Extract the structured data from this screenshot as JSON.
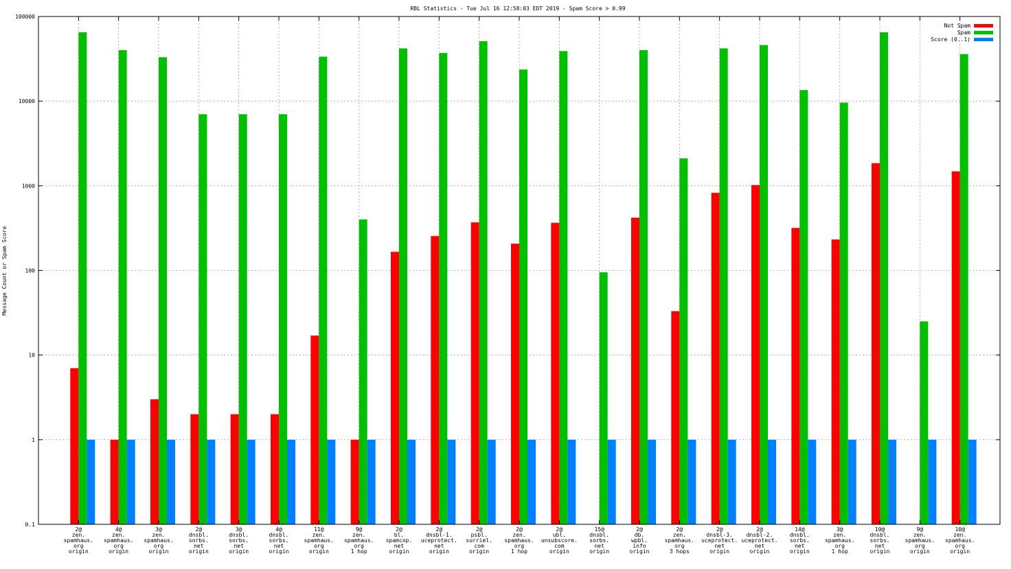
{
  "chart_data": {
    "type": "bar",
    "title": "RBL Statistics - Tue Jul 16 12:58:03 EDT 2019 - Spam Score > 0.99",
    "xlabel": "",
    "ylabel": "Message Count or Spam Score",
    "yscale": "log",
    "ylim": [
      0.1,
      100000
    ],
    "yticks": [
      "0.1",
      "1",
      "10",
      "100",
      "1000",
      "10000",
      "100000"
    ],
    "ytick_values": [
      0.1,
      1,
      10,
      100,
      1000,
      10000,
      100000
    ],
    "grid": true,
    "legend_position": "top-right",
    "categories": [
      [
        "2@",
        "zen.",
        "spamhaus.",
        "org",
        "origin"
      ],
      [
        "4@",
        "zen.",
        "spamhaus.",
        "org",
        "origin"
      ],
      [
        "3@",
        "zen.",
        "spamhaus.",
        "org",
        "origin"
      ],
      [
        "2@",
        "dnsbl.",
        "sorbs.",
        "net",
        "origin"
      ],
      [
        "3@",
        "dnsbl.",
        "sorbs.",
        "net",
        "origin"
      ],
      [
        "4@",
        "dnsbl.",
        "sorbs.",
        "net",
        "origin"
      ],
      [
        "11@",
        "zen.",
        "spamhaus.",
        "org",
        "origin"
      ],
      [
        "9@",
        "zen.",
        "spamhaus.",
        "org",
        "1 hop"
      ],
      [
        "2@",
        "bl.",
        "spamcop.",
        "net",
        "origin"
      ],
      [
        "2@",
        "dnsbl-1.",
        "uceprotect.",
        "net",
        "origin"
      ],
      [
        "2@",
        "psbl.",
        "surriel.",
        "com",
        "origin"
      ],
      [
        "2@",
        "zen.",
        "spamhaus.",
        "org",
        "1 hop"
      ],
      [
        "2@",
        "ubl.",
        "unsubscore.",
        "com",
        "origin"
      ],
      [
        "15@",
        "dnsbl.",
        "sorbs.",
        "net",
        "origin"
      ],
      [
        "2@",
        "db.",
        "wpbl.",
        "info",
        "origin"
      ],
      [
        "2@",
        "zen.",
        "spamhaus.",
        "org",
        "3 hops"
      ],
      [
        "2@",
        "dnsbl-3.",
        "uceprotect.",
        "net",
        "origin"
      ],
      [
        "2@",
        "dnsbl-2.",
        "uceprotect.",
        "net",
        "origin"
      ],
      [
        "14@",
        "dnsbl.",
        "sorbs.",
        "net",
        "origin"
      ],
      [
        "3@",
        "zen.",
        "spamhaus.",
        "org",
        "1 hop"
      ],
      [
        "10@",
        "dnsbl.",
        "sorbs.",
        "net",
        "origin"
      ],
      [
        "9@",
        "zen.",
        "spamhaus.",
        "org",
        "origin"
      ],
      [
        "10@",
        "zen.",
        "spamhaus.",
        "org",
        "origin"
      ]
    ],
    "series": [
      {
        "name": "Not Spam",
        "color": "#ff0000",
        "values": [
          7,
          1,
          3,
          2,
          2,
          2,
          17,
          1,
          166,
          255,
          370,
          207,
          365,
          0,
          420,
          33,
          826,
          1020,
          318,
          232,
          1850,
          0,
          1480
        ]
      },
      {
        "name": "Spam",
        "color": "#00c000",
        "values": [
          65000,
          40000,
          33000,
          7000,
          7000,
          7000,
          33500,
          400,
          42000,
          37000,
          51000,
          23600,
          39000,
          95,
          40000,
          2110,
          42000,
          46000,
          13500,
          9600,
          65000,
          25,
          36000
        ]
      },
      {
        "name": "Score (0..1)",
        "color": "#0080ff",
        "values": [
          1,
          1,
          1,
          1,
          1,
          1,
          1,
          1,
          1,
          1,
          1,
          1,
          1,
          1,
          1,
          1,
          1,
          1,
          1,
          1,
          1,
          1,
          1
        ]
      }
    ]
  }
}
